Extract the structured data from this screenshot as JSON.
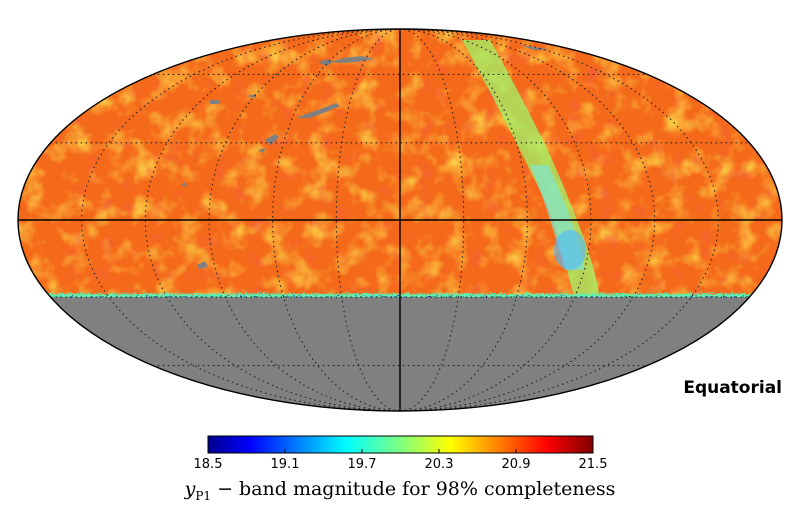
{
  "chart_data": {
    "type": "heatmap",
    "projection": "mollweide",
    "coordinate_system_label": "Equatorial",
    "colorbar": {
      "colormap": "jet",
      "min": 18.5,
      "max": 21.5,
      "ticks": [
        "18.5",
        "19.1",
        "19.7",
        "20.3",
        "20.9",
        "21.5"
      ],
      "title_var": "y",
      "title_sub": "P1",
      "title_rest": " − band magnitude for 98% completeness"
    },
    "no_coverage_color": "#808080",
    "typical_value": 20.85,
    "southern_coverage_limit_dec": -30,
    "grid": true,
    "graticule_ra_spacing_deg": 30,
    "graticule_dec_spacing_deg": 30
  }
}
